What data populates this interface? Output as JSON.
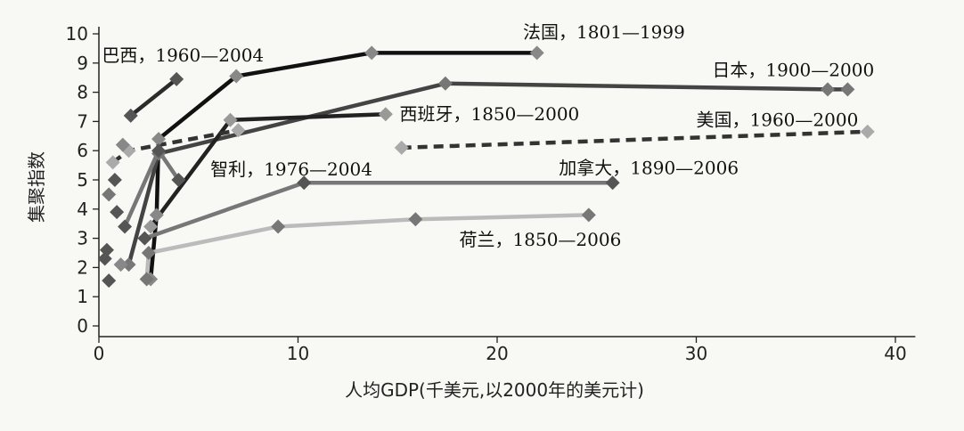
{
  "chart_data": {
    "type": "line",
    "xlabel": "人均GDP(千美元,以2000年的美元计)",
    "ylabel": "集聚指数",
    "xlim": [
      0,
      41
    ],
    "ylim": [
      0,
      10
    ],
    "xticks": [
      0,
      10,
      20,
      30,
      40
    ],
    "yticks": [
      0,
      1,
      2,
      3,
      4,
      5,
      6,
      7,
      8,
      9,
      10
    ],
    "grid": false,
    "series": [
      {
        "name": "巴西，1960—2004",
        "color": "#2b2b2b",
        "marker_color": "#555555",
        "dashed": false,
        "points": [
          [
            1.6,
            7.2
          ],
          [
            3.9,
            8.45
          ]
        ]
      },
      {
        "name": "法国，1801—1999",
        "color": "#111111",
        "marker_color": "#888888",
        "dashed": false,
        "points": [
          [
            2.6,
            1.6
          ],
          [
            2.9,
            3.8
          ],
          [
            3.0,
            6.4
          ],
          [
            6.9,
            8.55
          ],
          [
            13.7,
            9.35
          ],
          [
            22.0,
            9.35
          ]
        ]
      },
      {
        "name": "日本，1900—2000",
        "color": "#444444",
        "marker_color": "#777777",
        "dashed": false,
        "points": [
          [
            1.5,
            2.1
          ],
          [
            3.0,
            5.9
          ],
          [
            17.4,
            8.3
          ],
          [
            36.6,
            8.1
          ],
          [
            37.6,
            8.1
          ]
        ]
      },
      {
        "name": "西班牙，1850—2000",
        "color": "#222222",
        "marker_color": "#999999",
        "dashed": false,
        "points": [
          [
            2.6,
            3.4
          ],
          [
            6.6,
            7.05
          ],
          [
            14.4,
            7.25
          ]
        ]
      },
      {
        "name": "智利，1976—2004",
        "color": "#333333",
        "marker_color": "#aaaaaa",
        "dashed": true,
        "points": [
          [
            0.7,
            5.6
          ],
          [
            1.5,
            6.0
          ],
          [
            7.0,
            6.7
          ]
        ]
      },
      {
        "name": "美国，1960—2000",
        "color": "#333333",
        "marker_color": "#aaaaaa",
        "dashed": true,
        "points": [
          [
            15.2,
            6.1
          ],
          [
            38.6,
            6.65
          ]
        ]
      },
      {
        "name": "加拿大，1890—2006",
        "color": "#777777",
        "marker_color": "#555555",
        "dashed": false,
        "points": [
          [
            1.3,
            3.4
          ],
          [
            3.0,
            6.0
          ],
          [
            4.0,
            5.0
          ]
        ]
      },
      {
        "name": "加拿大，1890—2006",
        "color": "#777777",
        "marker_color": "#555555",
        "dashed": false,
        "points": [
          [
            2.3,
            3.0
          ],
          [
            10.3,
            4.9
          ],
          [
            25.8,
            4.9
          ]
        ]
      },
      {
        "name": "荷兰，1850—2006",
        "color": "#bbbbbb",
        "marker_color": "#777777",
        "dashed": false,
        "points": [
          [
            2.4,
            1.6
          ],
          [
            2.5,
            2.5
          ],
          [
            9.0,
            3.4
          ],
          [
            15.9,
            3.65
          ],
          [
            24.6,
            3.8
          ]
        ]
      }
    ],
    "extra_markers": [
      {
        "x": 0.4,
        "y": 2.6,
        "color": "#555555"
      },
      {
        "x": 0.3,
        "y": 2.3,
        "color": "#555555"
      },
      {
        "x": 0.5,
        "y": 1.55,
        "color": "#555555"
      },
      {
        "x": 0.5,
        "y": 4.5,
        "color": "#777777"
      },
      {
        "x": 0.8,
        "y": 5.0,
        "color": "#555555"
      },
      {
        "x": 0.9,
        "y": 3.9,
        "color": "#555555"
      },
      {
        "x": 1.2,
        "y": 6.2,
        "color": "#888888"
      },
      {
        "x": 1.1,
        "y": 2.1,
        "color": "#888888"
      }
    ],
    "labels": [
      {
        "text": "巴西，1960—2004",
        "x": 0.15,
        "y": 9.05
      },
      {
        "text": "法国，1801—1999",
        "x": 21.3,
        "y": 9.85
      },
      {
        "text": "日本，1900—2000",
        "x": 30.8,
        "y": 8.55
      },
      {
        "text": "西班牙，1850—2000",
        "x": 15.1,
        "y": 7.05
      },
      {
        "text": "美国，1960—2000",
        "x": 30.0,
        "y": 6.85
      },
      {
        "text": "智利，1976—2004",
        "x": 5.6,
        "y": 5.15
      },
      {
        "text": "加拿大，1890—2006",
        "x": 23.1,
        "y": 5.2
      },
      {
        "text": "荷兰，1850—2006",
        "x": 18.1,
        "y": 2.75
      }
    ]
  }
}
